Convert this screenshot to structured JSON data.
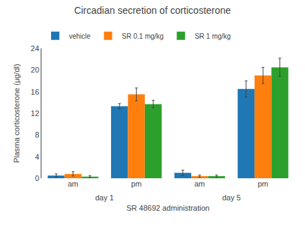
{
  "chart_data": {
    "type": "bar",
    "title": "Circadian secretion of corticosterone",
    "ylabel": "Plasma corticosterone (μg/dl)",
    "xlabel": "SR 48692 administration",
    "categories": [
      "am",
      "pm",
      "am",
      "pm"
    ],
    "annotations": [
      "day 1",
      "day 5"
    ],
    "series": [
      {
        "name": "vehicle",
        "values": [
          0.5,
          13.3,
          1.0,
          16.5
        ],
        "errors": [
          0.3,
          0.5,
          0.5,
          1.5
        ]
      },
      {
        "name": "SR 0.1 mg/kg",
        "values": [
          0.8,
          15.5,
          0.4,
          19.0
        ],
        "errors": [
          0.4,
          1.2,
          0.2,
          1.5
        ]
      },
      {
        "name": "SR 1 mg/kg",
        "values": [
          0.3,
          13.7,
          0.4,
          20.5
        ],
        "errors": [
          0.2,
          0.7,
          0.2,
          1.7
        ]
      }
    ],
    "ylim": [
      0,
      24
    ],
    "yticks": [
      0,
      4,
      8,
      12,
      16,
      20,
      24
    ],
    "grid": false,
    "legend": "upper left"
  }
}
